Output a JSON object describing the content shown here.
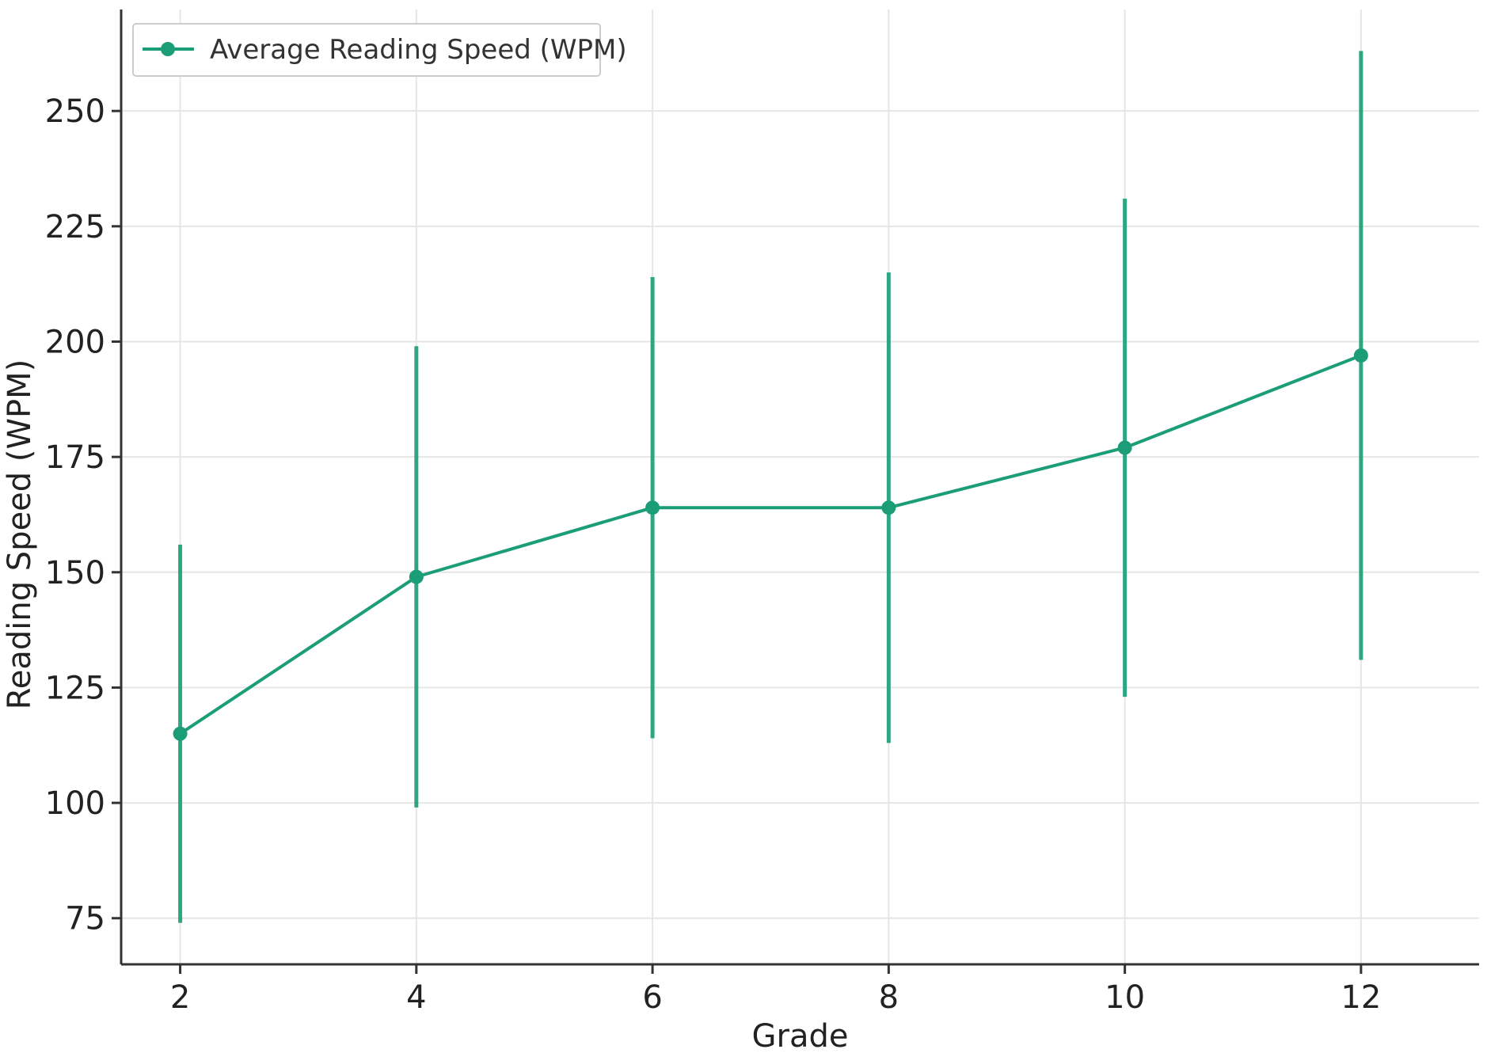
{
  "chart_data": {
    "type": "line",
    "title": "",
    "xlabel": "Grade",
    "ylabel": "Reading Speed (WPM)",
    "x": [
      2,
      4,
      6,
      8,
      10,
      12
    ],
    "series": [
      {
        "name": "Average Reading Speed (WPM)",
        "values": [
          115,
          149,
          164,
          164,
          177,
          197
        ],
        "error_low": [
          74,
          99,
          114,
          113,
          123,
          131
        ],
        "error_high": [
          156,
          199,
          214,
          215,
          231,
          263
        ],
        "color": "#1b9e77"
      }
    ],
    "xticks": [
      2,
      4,
      6,
      8,
      10,
      12
    ],
    "yticks": [
      75,
      100,
      125,
      150,
      175,
      200,
      225,
      250
    ],
    "xlim": [
      1.5,
      13.0
    ],
    "ylim": [
      65,
      272
    ],
    "grid": true,
    "legend_position": "top-left"
  }
}
